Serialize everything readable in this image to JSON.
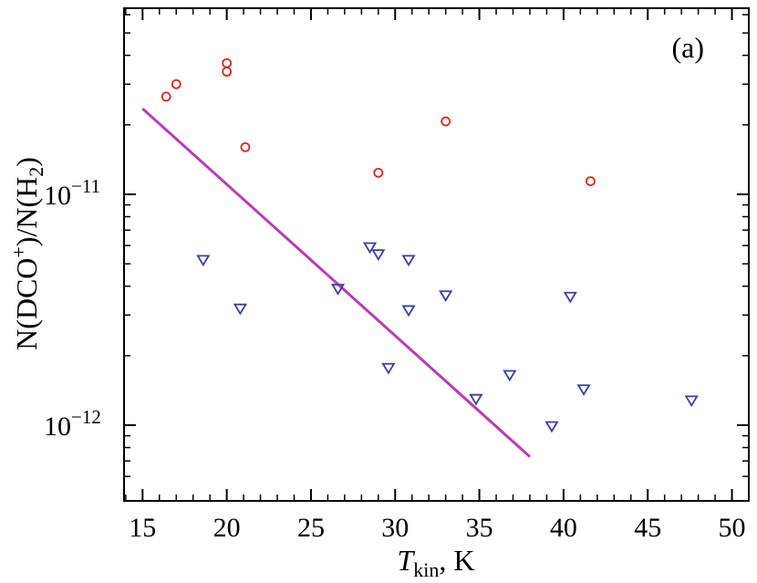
{
  "chart_data": {
    "type": "scatter",
    "panel_label": "(a)",
    "xlabel": {
      "main": "T",
      "sub": "kin",
      "rest": ", K"
    },
    "ylabel": {
      "p1": "N(DCO",
      "sup": "+",
      "p2": ")/N(H",
      "sub": "2",
      "p3": ")"
    },
    "xlim": [
      13.9,
      51.0
    ],
    "ylim": [
      4.7e-13,
      6.4e-11
    ],
    "yscale": "log",
    "x_ticks": [
      15,
      20,
      25,
      30,
      35,
      40,
      45,
      50
    ],
    "x_tick_labels": [
      "15",
      "20",
      "25",
      "30",
      "35",
      "40",
      "45",
      "50"
    ],
    "y_major_ticks": [
      {
        "value": 1e-12,
        "base": "10",
        "exp": "−12"
      },
      {
        "value": 1e-11,
        "base": "10",
        "exp": "−11"
      }
    ],
    "y_minor_ticks": [
      6e-13,
      7e-13,
      8e-13,
      9e-13,
      2e-12,
      3e-12,
      4e-12,
      5e-12,
      6e-12,
      7e-12,
      8e-12,
      9e-12,
      2e-11,
      3e-11,
      4e-11,
      5e-11,
      6e-11
    ],
    "series": [
      {
        "marker": "circle",
        "color": "#d42a1e",
        "points": [
          {
            "x": 16.4,
            "y": 2.65e-11
          },
          {
            "x": 17.0,
            "y": 3e-11
          },
          {
            "x": 20.0,
            "y": 3.7e-11
          },
          {
            "x": 20.0,
            "y": 3.4e-11
          },
          {
            "x": 21.1,
            "y": 1.6e-11
          },
          {
            "x": 29.0,
            "y": 1.24e-11
          },
          {
            "x": 33.0,
            "y": 2.07e-11
          },
          {
            "x": 41.6,
            "y": 1.14e-11
          }
        ]
      },
      {
        "marker": "triangle-down",
        "color": "#3a3fa0",
        "points": [
          {
            "x": 18.6,
            "y": 5.2e-12
          },
          {
            "x": 20.8,
            "y": 3.2e-12
          },
          {
            "x": 26.6,
            "y": 3.9e-12
          },
          {
            "x": 28.5,
            "y": 5.9e-12
          },
          {
            "x": 29.0,
            "y": 5.5e-12
          },
          {
            "x": 29.6,
            "y": 1.77e-12
          },
          {
            "x": 30.8,
            "y": 5.2e-12
          },
          {
            "x": 30.8,
            "y": 3.15e-12
          },
          {
            "x": 33.0,
            "y": 3.65e-12
          },
          {
            "x": 34.8,
            "y": 1.3e-12
          },
          {
            "x": 36.8,
            "y": 1.65e-12
          },
          {
            "x": 39.3,
            "y": 9.9e-13
          },
          {
            "x": 40.4,
            "y": 3.6e-12
          },
          {
            "x": 41.2,
            "y": 1.43e-12
          },
          {
            "x": 47.6,
            "y": 1.28e-12
          }
        ]
      }
    ],
    "fit_line": {
      "color": "#b83cb5",
      "points": [
        {
          "x": 15.0,
          "y": 2.35e-11
        },
        {
          "x": 38.0,
          "y": 7.3e-13
        }
      ]
    }
  }
}
